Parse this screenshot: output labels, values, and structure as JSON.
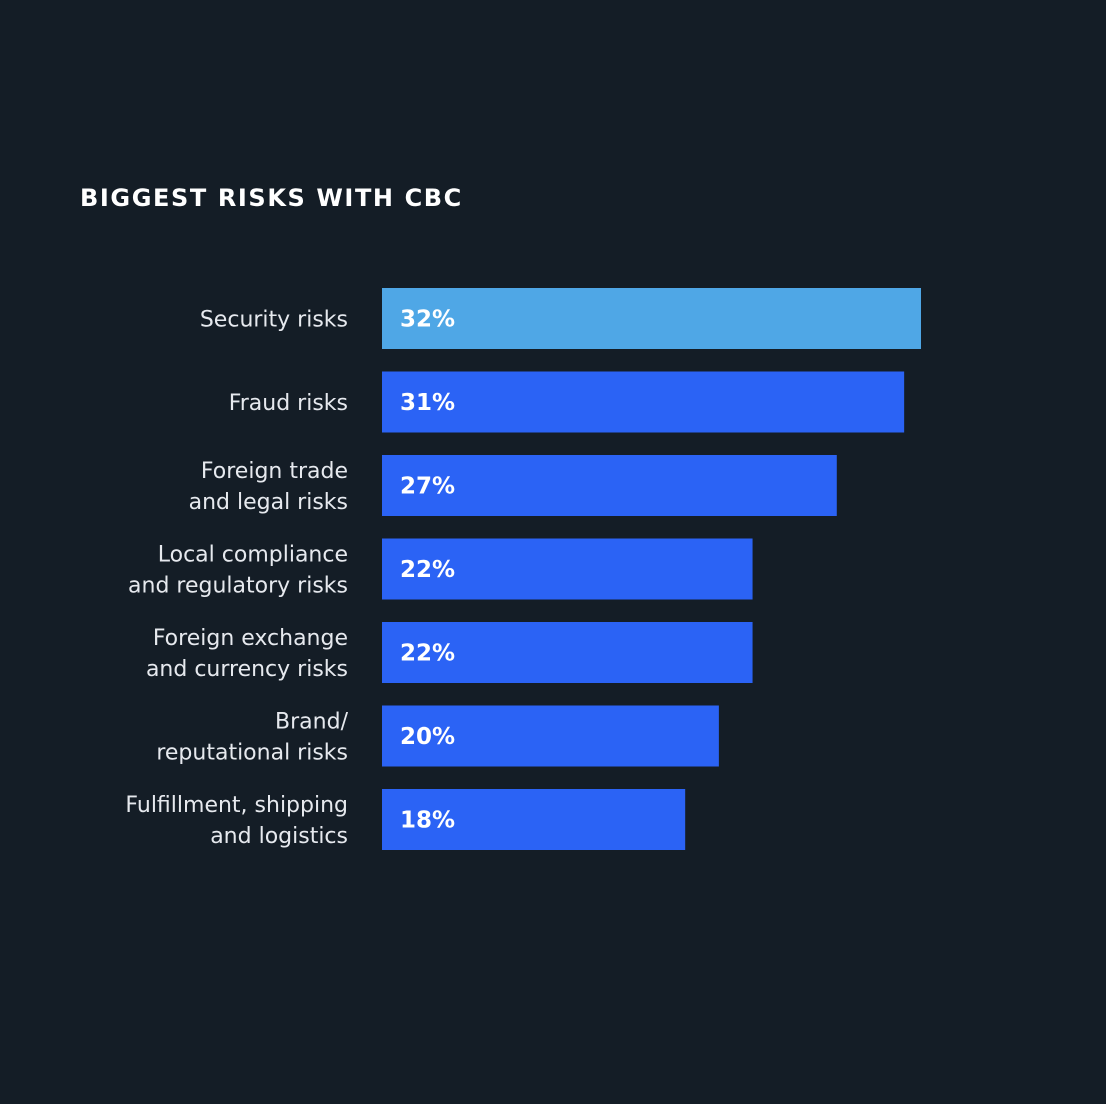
{
  "colors": {
    "background": "#141d26",
    "highlight_bar": "#4fa7e6",
    "bar": "#2b63f5",
    "label_text": "#e6e9ee",
    "value_text": "#ffffff"
  },
  "chart_data": {
    "type": "bar",
    "orientation": "horizontal",
    "title": "BIGGEST RISKS WITH CBC",
    "categories": [
      [
        "Security risks"
      ],
      [
        "Fraud risks"
      ],
      [
        "Foreign trade",
        "and legal risks"
      ],
      [
        "Local compliance",
        "and regulatory risks"
      ],
      [
        "Foreign exchange",
        "and currency risks"
      ],
      [
        "Brand/",
        "reputational risks"
      ],
      [
        "Fulfillment, shipping",
        "and logistics"
      ]
    ],
    "values": [
      32,
      31,
      27,
      22,
      22,
      20,
      18
    ],
    "value_labels": [
      "32%",
      "31%",
      "27%",
      "22%",
      "22%",
      "20%",
      "18%"
    ],
    "highlighted_index": 0,
    "xlim": [
      0,
      32
    ],
    "grid": false,
    "legend": "none"
  }
}
